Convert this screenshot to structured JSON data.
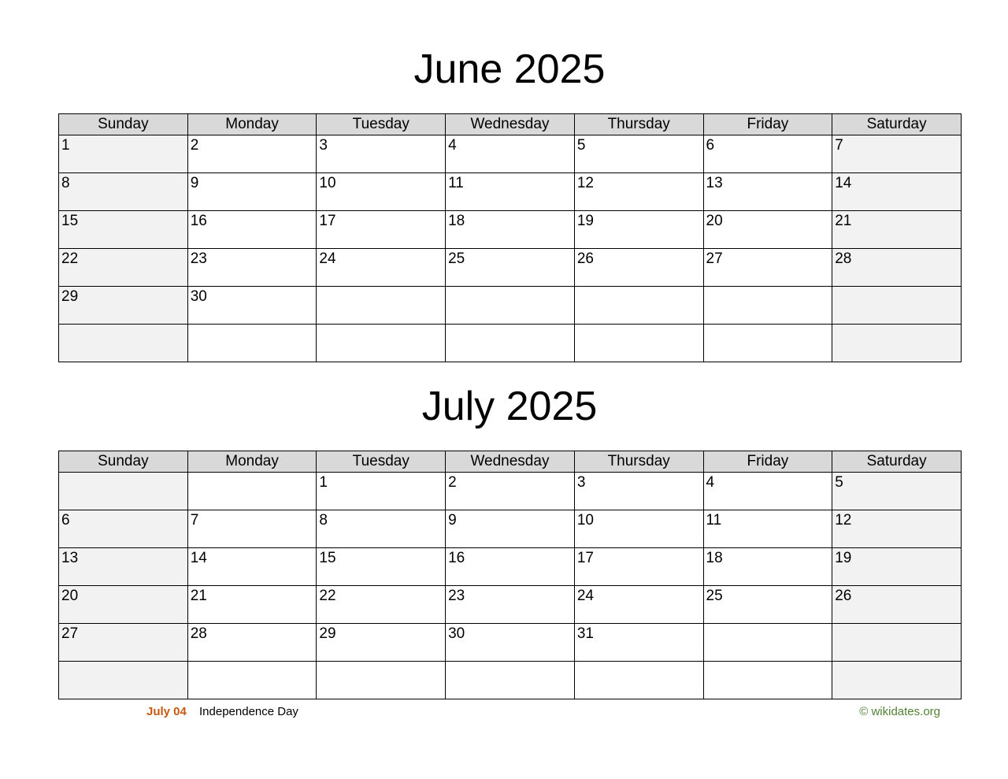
{
  "weekdays": [
    "Sunday",
    "Monday",
    "Tuesday",
    "Wednesday",
    "Thursday",
    "Friday",
    "Saturday"
  ],
  "months": [
    {
      "title": "June 2025",
      "weeks": [
        [
          "1",
          "2",
          "3",
          "4",
          "5",
          "6",
          "7"
        ],
        [
          "8",
          "9",
          "10",
          "11",
          "12",
          "13",
          "14"
        ],
        [
          "15",
          "16",
          "17",
          "18",
          "19",
          "20",
          "21"
        ],
        [
          "22",
          "23",
          "24",
          "25",
          "26",
          "27",
          "28"
        ],
        [
          "29",
          "30",
          "",
          "",
          "",
          "",
          ""
        ],
        [
          "",
          "",
          "",
          "",
          "",
          "",
          ""
        ]
      ]
    },
    {
      "title": "July 2025",
      "weeks": [
        [
          "",
          "",
          "1",
          "2",
          "3",
          "4",
          "5"
        ],
        [
          "6",
          "7",
          "8",
          "9",
          "10",
          "11",
          "12"
        ],
        [
          "13",
          "14",
          "15",
          "16",
          "17",
          "18",
          "19"
        ],
        [
          "20",
          "21",
          "22",
          "23",
          "24",
          "25",
          "26"
        ],
        [
          "27",
          "28",
          "29",
          "30",
          "31",
          "",
          ""
        ],
        [
          "",
          "",
          "",
          "",
          "",
          "",
          ""
        ]
      ]
    }
  ],
  "holiday": {
    "date": "July 04",
    "name": "Independence Day",
    "color": "#c55a11"
  },
  "copyright": "© wikidates.org"
}
